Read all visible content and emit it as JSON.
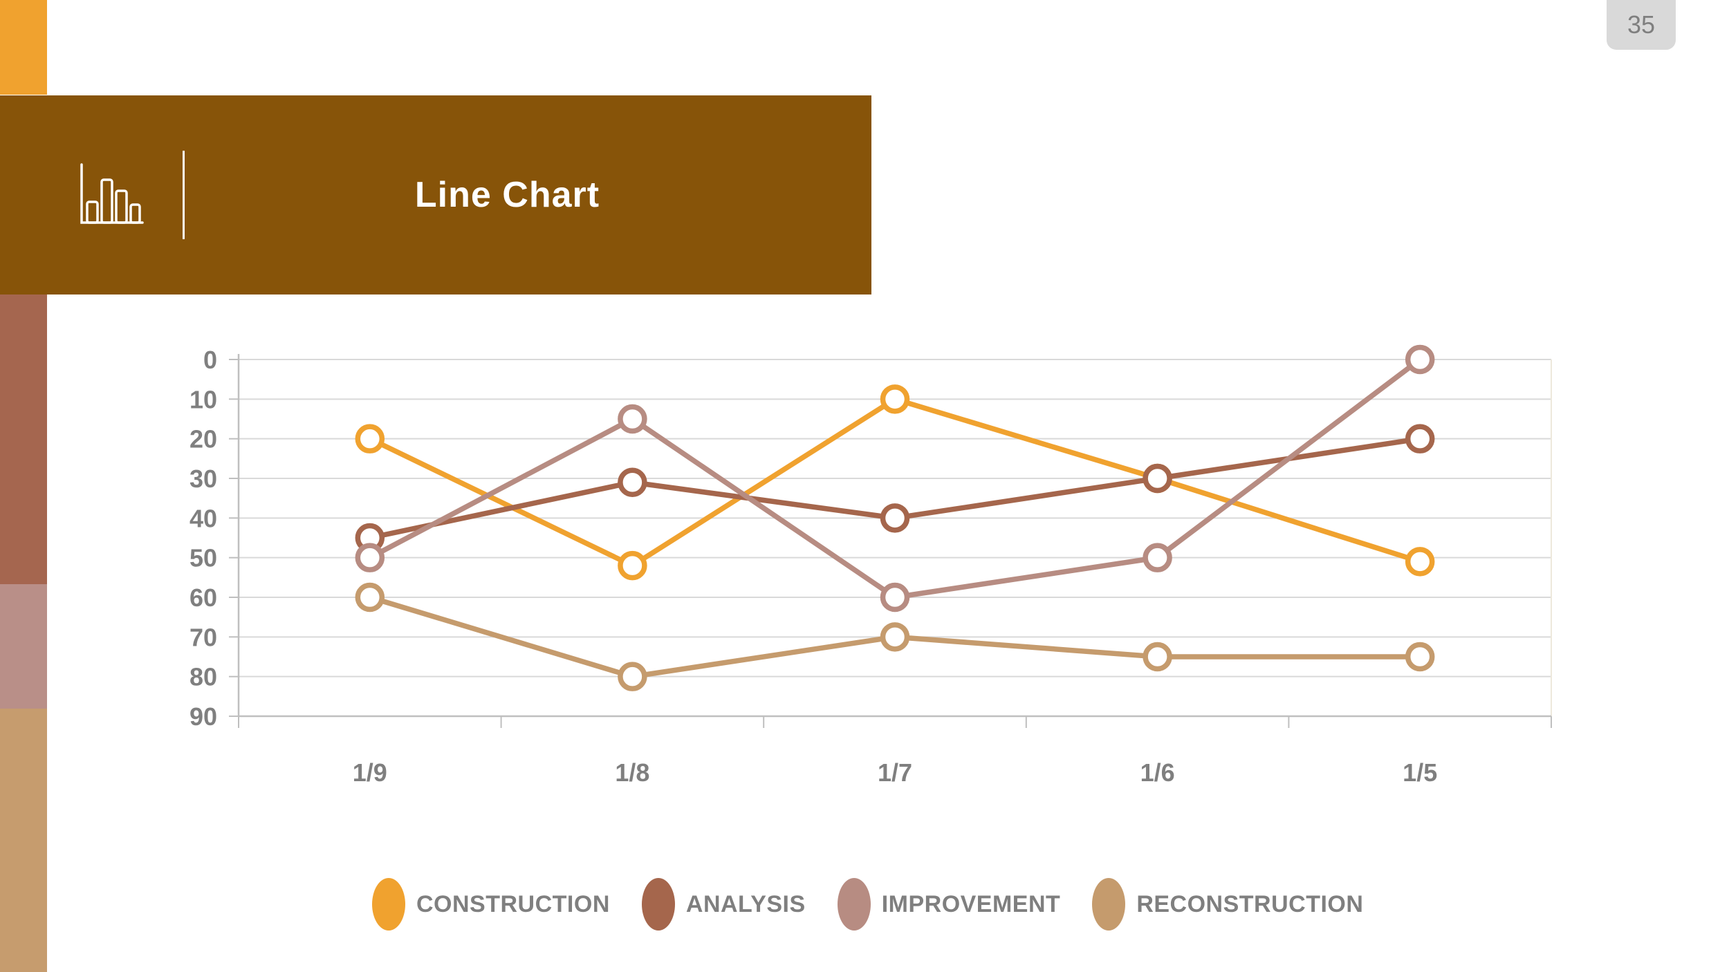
{
  "page": {
    "number": "35"
  },
  "header": {
    "title": "Line Chart",
    "icon": "bar-chart-icon"
  },
  "theme": {
    "accent_orange": "#F0A22F",
    "banner_brown": "#875409",
    "accent_red": "#A5664F",
    "accent_mauve": "#B98F88",
    "accent_tan": "#C69C6E",
    "badge_bg": "#D9D9D9",
    "text_gray": "#7F7F7F",
    "gridline": "#D9D9D9",
    "axis_line": "#BFBFBF"
  },
  "chart_data": {
    "type": "line",
    "title": "Line Chart",
    "categories": [
      "1/9",
      "1/8",
      "1/7",
      "1/6",
      "1/5"
    ],
    "series": [
      {
        "name": "CONSTRUCTION",
        "color": "#F0A22F",
        "values": [
          20,
          52,
          10,
          30,
          51
        ]
      },
      {
        "name": "ANALYSIS",
        "color": "#A5664C",
        "values": [
          45,
          31,
          40,
          30,
          20
        ]
      },
      {
        "name": "IMPROVEMENT",
        "color": "#B78C82",
        "values": [
          50,
          15,
          60,
          50,
          0
        ]
      },
      {
        "name": "RECONSTRUCTION",
        "color": "#C59B6D",
        "values": [
          60,
          80,
          70,
          75,
          75
        ]
      }
    ],
    "xlabel": "",
    "ylabel": "",
    "y_axis": {
      "min": 0,
      "max": 90,
      "step": 10,
      "inverted": true,
      "tick_labels": [
        "0",
        "10",
        "20",
        "30",
        "40",
        "50",
        "60",
        "70",
        "80",
        "90"
      ]
    },
    "grid": true,
    "legend_position": "bottom",
    "marker_style": "open-circle"
  }
}
